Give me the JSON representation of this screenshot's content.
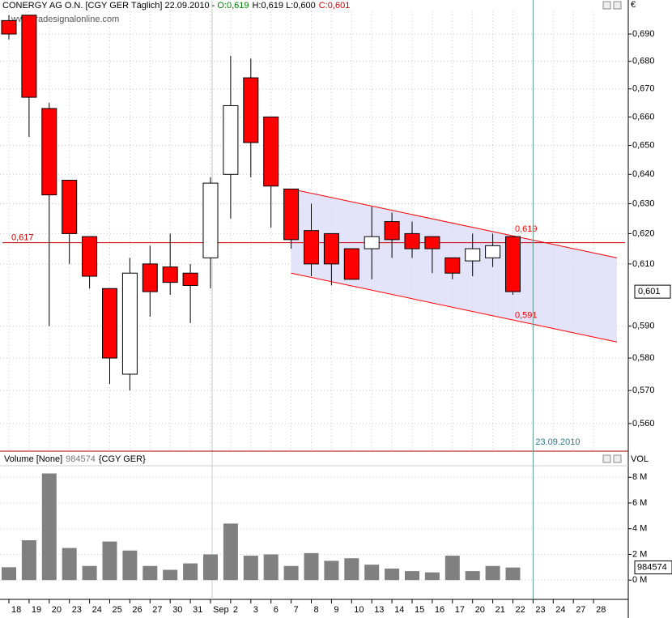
{
  "chart_data": {
    "type": "candlestick",
    "title_parts": [
      {
        "text": "CONERGY AG O.N. [CGY GER  Täglich] 22.09.2010 - ",
        "color": "#000000"
      },
      {
        "text": "O:0,619",
        "color": "#008000"
      },
      {
        "text": "H:0,619 L:0,600",
        "color": "#000000"
      },
      {
        "text": "C:0,601",
        "color": "#cc0000"
      }
    ],
    "watermark": "www.tradesignalonline.com",
    "currency": "€",
    "categories": [
      "18",
      "19",
      "20",
      "23",
      "24",
      "25",
      "26",
      "27",
      "30",
      "31",
      "Sep",
      "2",
      "3",
      "6",
      "7",
      "8",
      "9",
      "10",
      "13",
      "14",
      "15",
      "16",
      "17",
      "20",
      "21",
      "22",
      "23",
      "24",
      "27",
      "28"
    ],
    "open": [
      0.695,
      0.697,
      0.663,
      0.638,
      0.619,
      0.602,
      0.575,
      0.61,
      0.609,
      0.607,
      0.612,
      0.64,
      0.674,
      0.66,
      0.635,
      0.621,
      0.62,
      0.615,
      0.615,
      0.624,
      0.62,
      0.619,
      0.612,
      0.611,
      0.612,
      0.619,
      null,
      null,
      null,
      null
    ],
    "high": [
      0.697,
      0.697,
      0.665,
      0.638,
      0.619,
      0.602,
      0.612,
      0.616,
      0.62,
      0.61,
      0.639,
      0.682,
      0.681,
      0.66,
      0.635,
      0.63,
      0.62,
      0.615,
      0.629,
      0.627,
      0.624,
      0.619,
      0.612,
      0.62,
      0.62,
      0.619,
      null,
      null,
      null,
      null
    ],
    "low": [
      0.688,
      0.653,
      0.59,
      0.61,
      0.602,
      0.572,
      0.57,
      0.593,
      0.6,
      0.591,
      0.602,
      0.625,
      0.639,
      0.622,
      0.615,
      0.606,
      0.603,
      0.605,
      0.605,
      0.612,
      0.612,
      0.607,
      0.605,
      0.606,
      0.609,
      0.6,
      null,
      null,
      null,
      null
    ],
    "close": [
      0.69,
      0.667,
      0.633,
      0.62,
      0.606,
      0.58,
      0.607,
      0.601,
      0.604,
      0.603,
      0.637,
      0.664,
      0.651,
      0.636,
      0.618,
      0.61,
      0.61,
      0.605,
      0.619,
      0.618,
      0.615,
      0.615,
      0.607,
      0.615,
      0.616,
      0.601,
      null,
      null,
      null,
      null
    ],
    "up_color": "#ffffff",
    "down_color": "#ff0000",
    "ylim": [
      0.552,
      0.7027
    ],
    "log": true,
    "grid": true,
    "yticks": [
      {
        "value": 0.56,
        "label": "0,560"
      },
      {
        "value": 0.57,
        "label": "0,570"
      },
      {
        "value": 0.58,
        "label": "0,580"
      },
      {
        "value": 0.59,
        "label": "0,590"
      },
      {
        "value": 0.61,
        "label": "0,610"
      },
      {
        "value": 0.62,
        "label": "0,620"
      },
      {
        "value": 0.63,
        "label": "0,630"
      },
      {
        "value": 0.64,
        "label": "0,640"
      },
      {
        "value": 0.65,
        "label": "0,650"
      },
      {
        "value": 0.66,
        "label": "0,660"
      },
      {
        "value": 0.67,
        "label": "0,670"
      },
      {
        "value": 0.68,
        "label": "0,680"
      },
      {
        "value": 0.69,
        "label": "0,690"
      }
    ],
    "reference_line": {
      "value": 0.617,
      "label": "0,617",
      "color": "#cc0000"
    },
    "last_price": {
      "value": 0.601,
      "label": "0,601"
    },
    "channel": {
      "upper": [
        0.635,
        0.612
      ],
      "lower": [
        0.607,
        0.585
      ],
      "fill": "#dcdcf8",
      "color": "#ff0000",
      "labels": [
        {
          "value": 0.619,
          "label": "0,619"
        },
        {
          "value": 0.591,
          "label": "0,591"
        }
      ]
    },
    "cursor_date": "23.09.2010",
    "volume": {
      "title": "Volume [None]",
      "last": {
        "value": 0.984574,
        "label": "984574"
      },
      "symbol": "{CGY GER}",
      "axis_label": "VOL",
      "color": "#808080",
      "values": [
        1.0,
        3.1,
        8.3,
        2.5,
        1.1,
        3.0,
        2.3,
        1.1,
        0.8,
        1.3,
        2.0,
        4.4,
        1.9,
        2.0,
        1.1,
        2.1,
        1.5,
        1.7,
        1.2,
        0.9,
        0.7,
        0.6,
        1.9,
        0.7,
        1.1,
        0.98,
        null,
        null,
        null,
        null
      ],
      "ylim": [
        -1.5,
        8.9
      ],
      "yticks": [
        {
          "value": 0,
          "label": "0 M"
        },
        {
          "value": 2,
          "label": "2 M"
        },
        {
          "value": 4,
          "label": "4 M"
        },
        {
          "value": 6,
          "label": "6 M"
        },
        {
          "value": 8,
          "label": "8 M"
        }
      ]
    }
  }
}
